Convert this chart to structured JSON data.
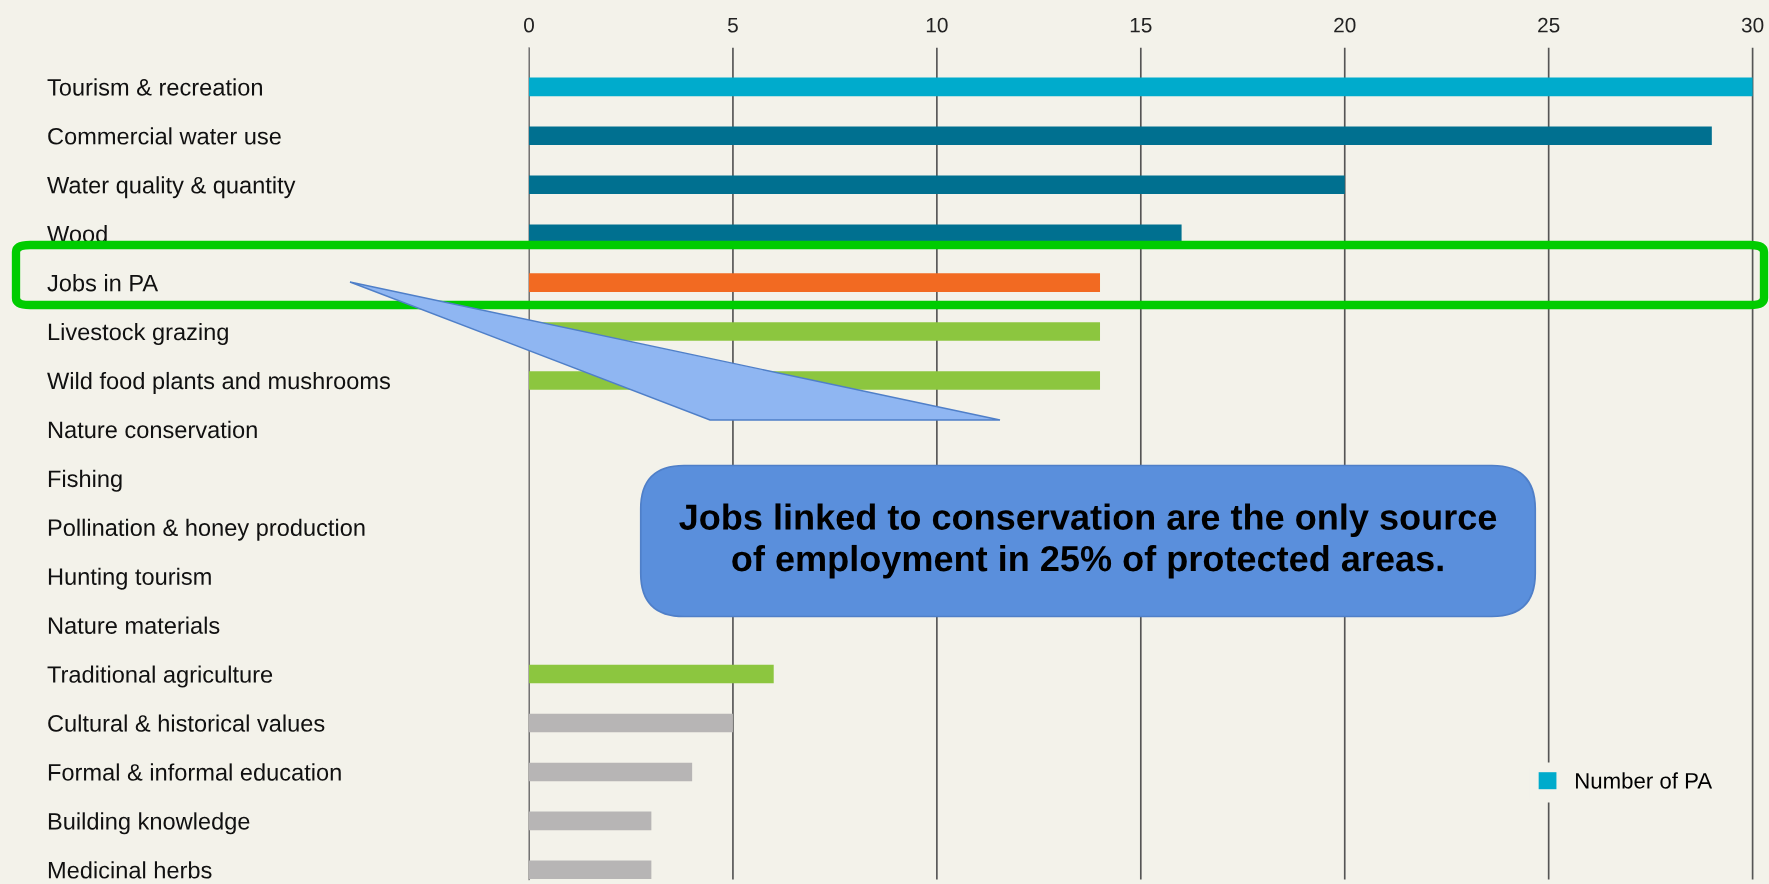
{
  "chart_data": {
    "type": "bar",
    "orientation": "horizontal",
    "categories": [
      "Tourism & recreation",
      "Commercial water use",
      "Water quality & quantity",
      "Wood",
      "Jobs in PA",
      "Livestock grazing",
      "Wild food plants and mushrooms",
      "Nature conservation",
      "Fishing",
      "Pollination & honey production",
      "Hunting tourism",
      "Nature materials",
      "Traditional agriculture",
      "Cultural & historical values",
      "Formal & informal education",
      "Building knowledge",
      "Medicinal herbs"
    ],
    "series": [
      {
        "name": "Number of PA",
        "color": "#00abcc",
        "values": [
          30,
          29,
          20,
          16,
          14,
          14,
          14,
          null,
          null,
          null,
          null,
          null,
          6,
          5,
          4,
          3,
          3
        ],
        "colors": [
          "#00abcc",
          "#007090",
          "#007090",
          "#007090",
          "#f26a22",
          "#8cc63f",
          "#8cc63f",
          null,
          null,
          null,
          null,
          null,
          "#8cc63f",
          "#b7b5b5",
          "#b7b5b5",
          "#b7b5b5",
          "#b7b5b5"
        ]
      }
    ],
    "xlim": [
      0,
      30.1
    ],
    "xticks": [
      0,
      5,
      10,
      15,
      20,
      25,
      30
    ],
    "grid": "x",
    "legend": "bottom right",
    "annotations": [
      "Jobs linked to conservation are the only source\nof employment in 25% of protected areas."
    ]
  }
}
